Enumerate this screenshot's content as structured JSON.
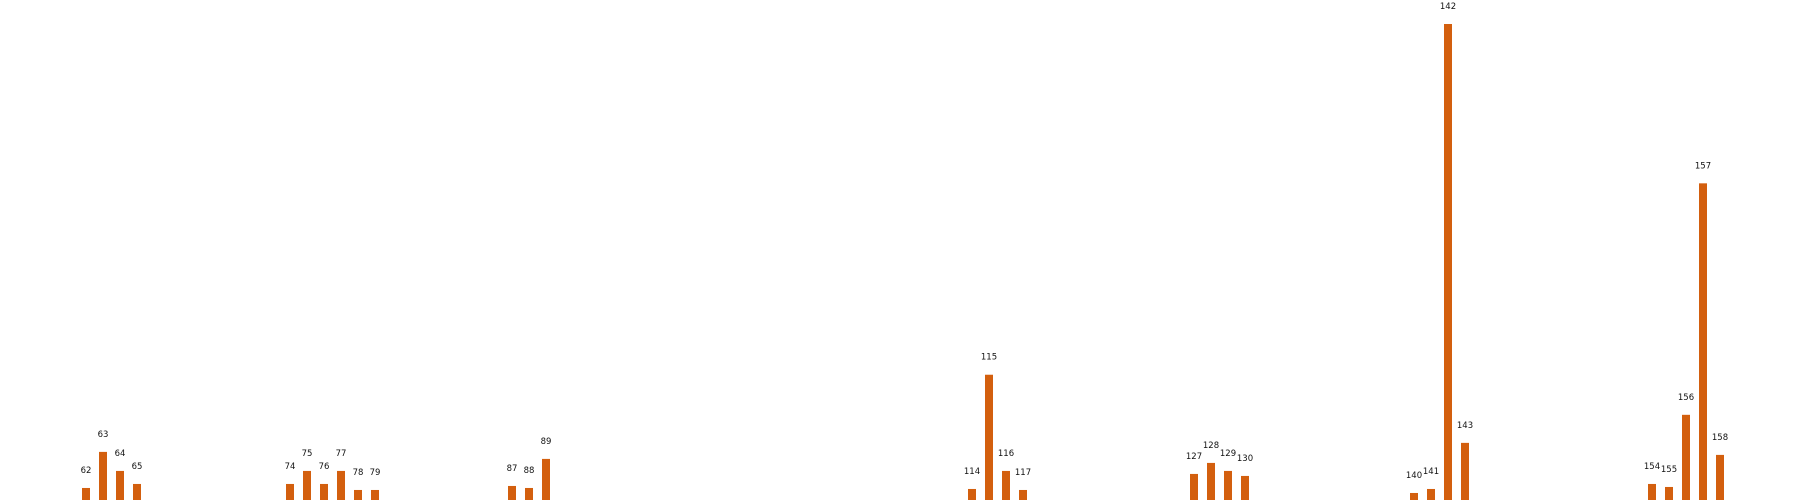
{
  "chart_data": {
    "type": "bar",
    "title": "",
    "xlabel": "",
    "ylabel": "",
    "grid": false,
    "legend": "none",
    "bar_color": "#d35f0e",
    "groups": [
      {
        "bars": [
          {
            "label": "62",
            "value": 14
          },
          {
            "label": "63",
            "value": 50
          },
          {
            "label": "64",
            "value": 31
          },
          {
            "label": "65",
            "value": 18
          }
        ]
      },
      {
        "bars": [
          {
            "label": "74",
            "value": 18
          },
          {
            "label": "75",
            "value": 31
          },
          {
            "label": "76",
            "value": 18
          },
          {
            "label": "77",
            "value": 31
          },
          {
            "label": "78",
            "value": 12
          },
          {
            "label": "79",
            "value": 12
          }
        ]
      },
      {
        "bars": [
          {
            "label": "87",
            "value": 16
          },
          {
            "label": "88",
            "value": 14
          },
          {
            "label": "89",
            "value": 43
          }
        ]
      },
      {
        "bars": [
          {
            "label": "114",
            "value": 13
          },
          {
            "label": "115",
            "value": 127
          },
          {
            "label": "116",
            "value": 31
          },
          {
            "label": "117",
            "value": 12
          }
        ]
      },
      {
        "bars": [
          {
            "label": "127",
            "value": 28
          },
          {
            "label": "128",
            "value": 39
          },
          {
            "label": "129",
            "value": 31
          },
          {
            "label": "130",
            "value": 26
          }
        ]
      },
      {
        "bars": [
          {
            "label": "140",
            "value": 9
          },
          {
            "label": "141",
            "value": 13
          },
          {
            "label": "142",
            "value": 477
          },
          {
            "label": "143",
            "value": 59
          }
        ]
      },
      {
        "bars": [
          {
            "label": "154",
            "value": 18
          },
          {
            "label": "155",
            "value": 15
          },
          {
            "label": "156",
            "value": 87
          },
          {
            "label": "157",
            "value": 318
          },
          {
            "label": "158",
            "value": 47
          }
        ]
      }
    ]
  }
}
